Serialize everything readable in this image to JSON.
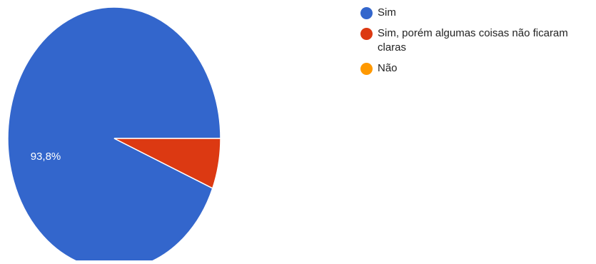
{
  "chart_data": {
    "type": "pie",
    "categories": [
      "Sim",
      "Sim, porém algumas coisas não ficaram claras",
      "Não"
    ],
    "values": [
      93.8,
      6.2,
      0
    ],
    "colors": [
      "#3366cc",
      "#dc3912",
      "#ff9900"
    ],
    "data_labels": [
      "93,8%",
      "",
      ""
    ],
    "legend": {
      "placement": "right",
      "items": [
        {
          "label": "Sim",
          "color": "#3366cc"
        },
        {
          "label": "Sim, porém algumas coisas não ficaram claras",
          "color": "#dc3912"
        },
        {
          "label": "Não",
          "color": "#ff9900"
        }
      ]
    }
  }
}
